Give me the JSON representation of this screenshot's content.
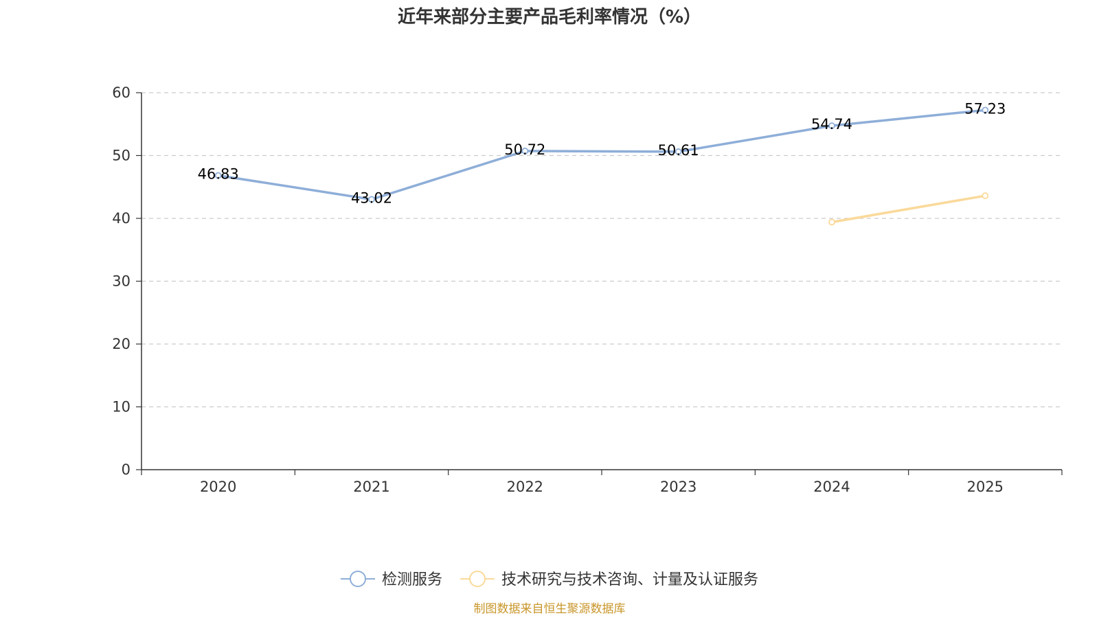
{
  "chart_data": {
    "type": "line",
    "title": "近年来部分主要产品毛利率情况（%）",
    "categories": [
      "2020",
      "2021",
      "2022",
      "2023",
      "2024",
      "2025"
    ],
    "y_ticks": [
      "0",
      "10",
      "20",
      "30",
      "40",
      "50",
      "60"
    ],
    "ylim": [
      0,
      60
    ],
    "grid": true,
    "legend_position": "bottom",
    "series": [
      {
        "name": "检测服务",
        "color": "#8eaed8",
        "values": [
          46.83,
          43.02,
          50.72,
          50.61,
          54.74,
          57.23
        ],
        "labels": [
          "46.83",
          "43.02",
          "50.72",
          "50.61",
          "54.74",
          "57.23"
        ],
        "show_labels": true
      },
      {
        "name": "技术研究与技术咨询、计量及认证服务",
        "color": "#fad99a",
        "values": [
          null,
          null,
          null,
          null,
          39.4,
          43.6
        ],
        "labels": [],
        "show_labels": false
      }
    ]
  },
  "source": {
    "text": "制图数据来自恒生聚源数据库",
    "color": "#c8962a"
  }
}
